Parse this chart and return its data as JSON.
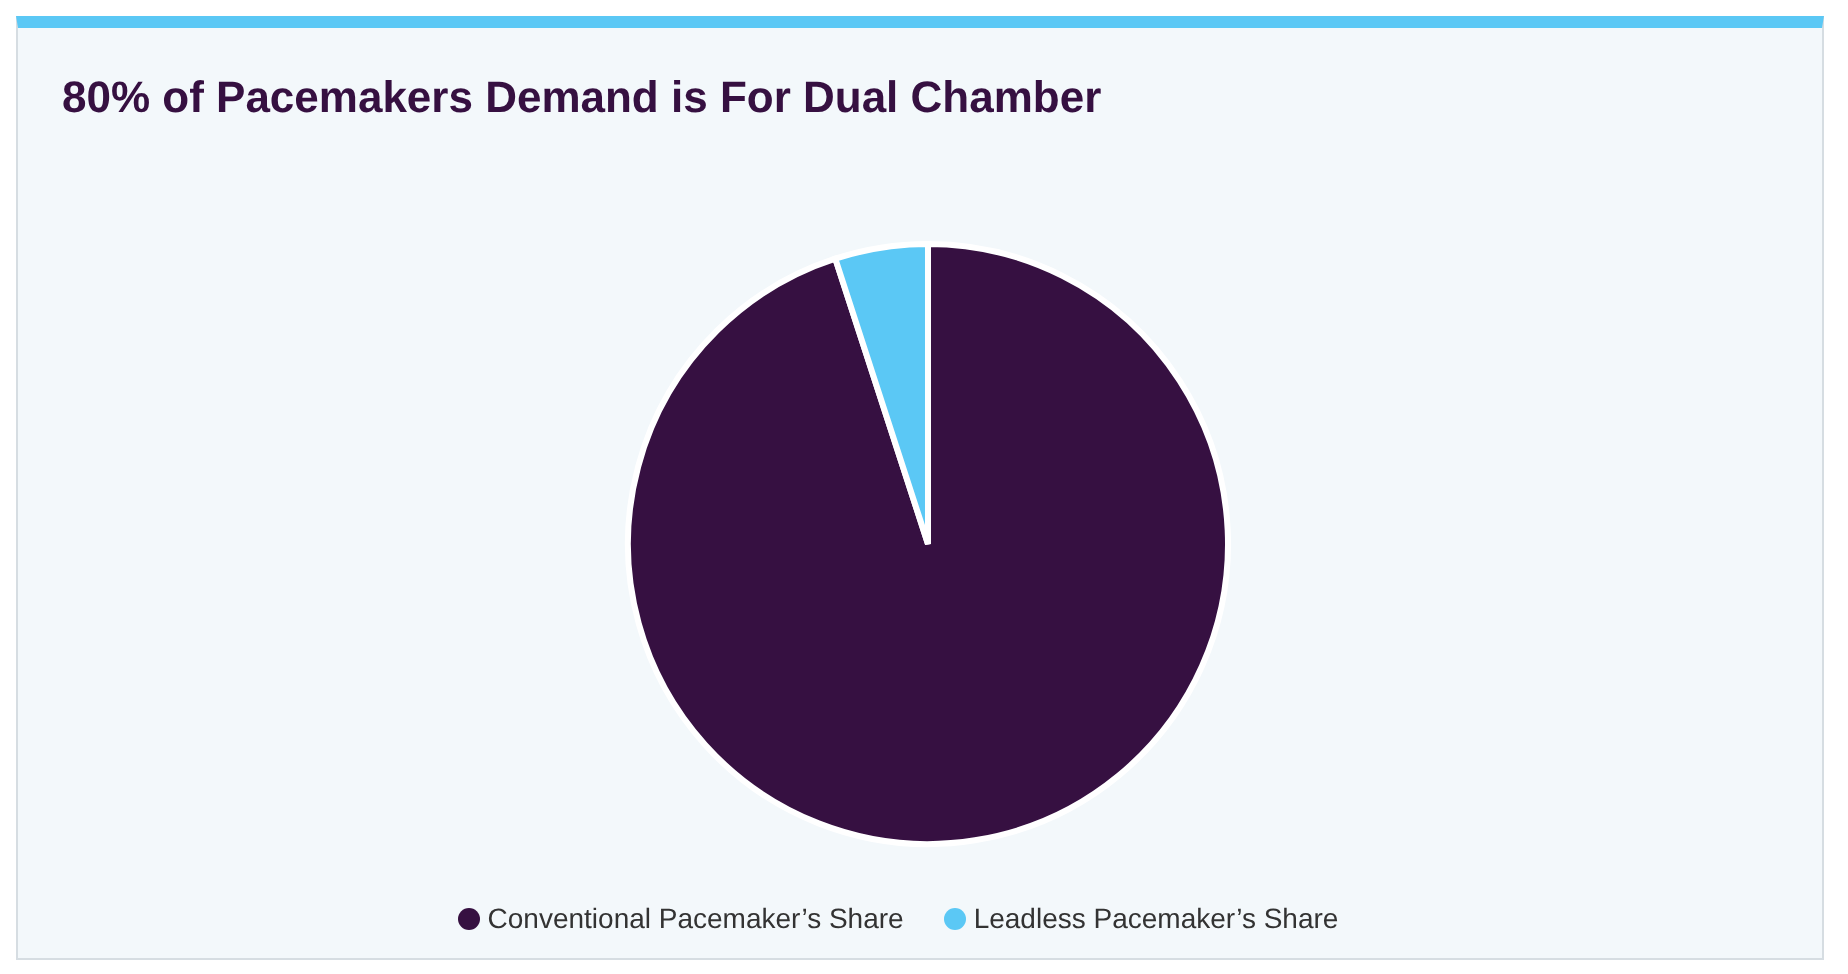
{
  "chart_data": {
    "type": "pie",
    "title": "80% of Pacemakers Demand is For Dual Chamber",
    "categories": [
      "Conventional Pacemaker’s Share",
      "Leadless Pacemaker’s Share"
    ],
    "values": [
      95,
      5
    ],
    "colors": [
      "#361041",
      "#5bc8f5"
    ],
    "legend": "bottom"
  }
}
